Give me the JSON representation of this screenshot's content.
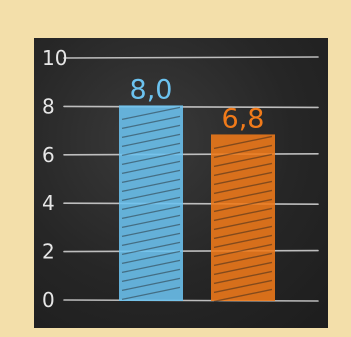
{
  "chart_data": {
    "type": "bar",
    "categories": [
      "",
      ""
    ],
    "values": [
      8.0,
      6.8
    ],
    "value_labels": [
      "8,0",
      "6,8"
    ],
    "bar_colors": [
      "#6cc3f0",
      "#f07a1a"
    ],
    "title": "",
    "xlabel": "",
    "ylabel": "",
    "ylim": [
      0,
      10
    ],
    "yticks": [
      "0",
      "2",
      "4",
      "6",
      "8",
      "10"
    ],
    "grid": true,
    "style": "chalkboard"
  }
}
